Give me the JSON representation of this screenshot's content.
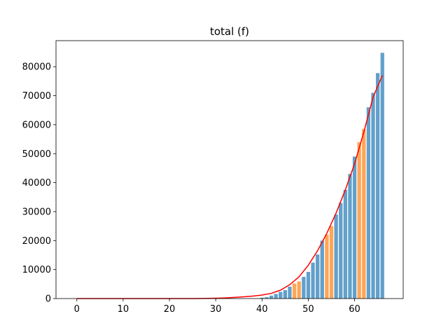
{
  "chart_data": {
    "type": "bar",
    "title": "total (f)",
    "xlabel": "",
    "ylabel": "",
    "xlim": [
      -4.5,
      70.5
    ],
    "ylim": [
      0,
      89000
    ],
    "x_ticks": [
      0,
      10,
      20,
      30,
      40,
      50,
      60
    ],
    "y_ticks": [
      0,
      10000,
      20000,
      30000,
      40000,
      50000,
      60000,
      70000,
      80000
    ],
    "y_tick_labels": [
      "0",
      "10000",
      "20000",
      "30000",
      "40000",
      "50000",
      "60000",
      "70000",
      "80000"
    ],
    "grid": false,
    "legend": "none",
    "colors": {
      "bar_default": "#1f77b4",
      "bar_highlight": "#ff7f0e",
      "fit_line": "#ff0000"
    },
    "bars": {
      "x": [
        0,
        1,
        2,
        3,
        4,
        5,
        6,
        7,
        8,
        9,
        10,
        11,
        12,
        13,
        14,
        15,
        16,
        17,
        18,
        19,
        20,
        21,
        22,
        23,
        24,
        25,
        26,
        27,
        28,
        29,
        30,
        31,
        32,
        33,
        34,
        35,
        36,
        37,
        38,
        39,
        40,
        41,
        42,
        43,
        44,
        45,
        46,
        47,
        48,
        49,
        50,
        51,
        52,
        53,
        54,
        55,
        56,
        57,
        58,
        59,
        60,
        61,
        62,
        63,
        64,
        65,
        66
      ],
      "values": [
        0,
        0,
        0,
        0,
        0,
        0,
        0,
        0,
        0,
        0,
        0,
        0,
        0,
        0,
        0,
        0,
        0,
        0,
        0,
        0,
        0,
        0,
        0,
        0,
        0,
        0,
        0,
        0,
        0,
        0,
        0,
        0,
        0,
        0,
        0,
        0,
        0,
        0,
        0,
        0,
        300,
        500,
        1000,
        1600,
        2300,
        2900,
        4100,
        5200,
        5900,
        7500,
        9200,
        12400,
        15200,
        20000,
        22000,
        25000,
        29000,
        33000,
        37500,
        43000,
        49000,
        54000,
        58500,
        66000,
        71000,
        77800,
        84800
      ],
      "highlight": [
        0,
        0,
        0,
        0,
        0,
        0,
        0,
        0,
        0,
        0,
        0,
        0,
        0,
        0,
        0,
        0,
        0,
        0,
        0,
        0,
        0,
        0,
        0,
        0,
        0,
        0,
        0,
        0,
        0,
        0,
        0,
        0,
        0,
        0,
        0,
        0,
        0,
        0,
        0,
        0,
        0,
        0,
        0,
        0,
        0,
        0,
        0,
        1,
        1,
        0,
        0,
        0,
        0,
        0,
        1,
        1,
        0,
        0,
        0,
        0,
        0,
        1,
        1,
        0,
        0,
        0,
        0
      ]
    },
    "fit_line": {
      "x": [
        0,
        5,
        10,
        15,
        20,
        25,
        28,
        30,
        32,
        34,
        36,
        38,
        40,
        42,
        44,
        46,
        48,
        50,
        52,
        54,
        56,
        58,
        60,
        62,
        64,
        66
      ],
      "values": [
        0,
        0,
        0,
        0,
        0,
        0,
        50,
        120,
        220,
        380,
        600,
        850,
        1200,
        1800,
        2900,
        4800,
        7500,
        11500,
        16500,
        22500,
        29500,
        37500,
        46500,
        57500,
        69500,
        77000
      ]
    }
  }
}
